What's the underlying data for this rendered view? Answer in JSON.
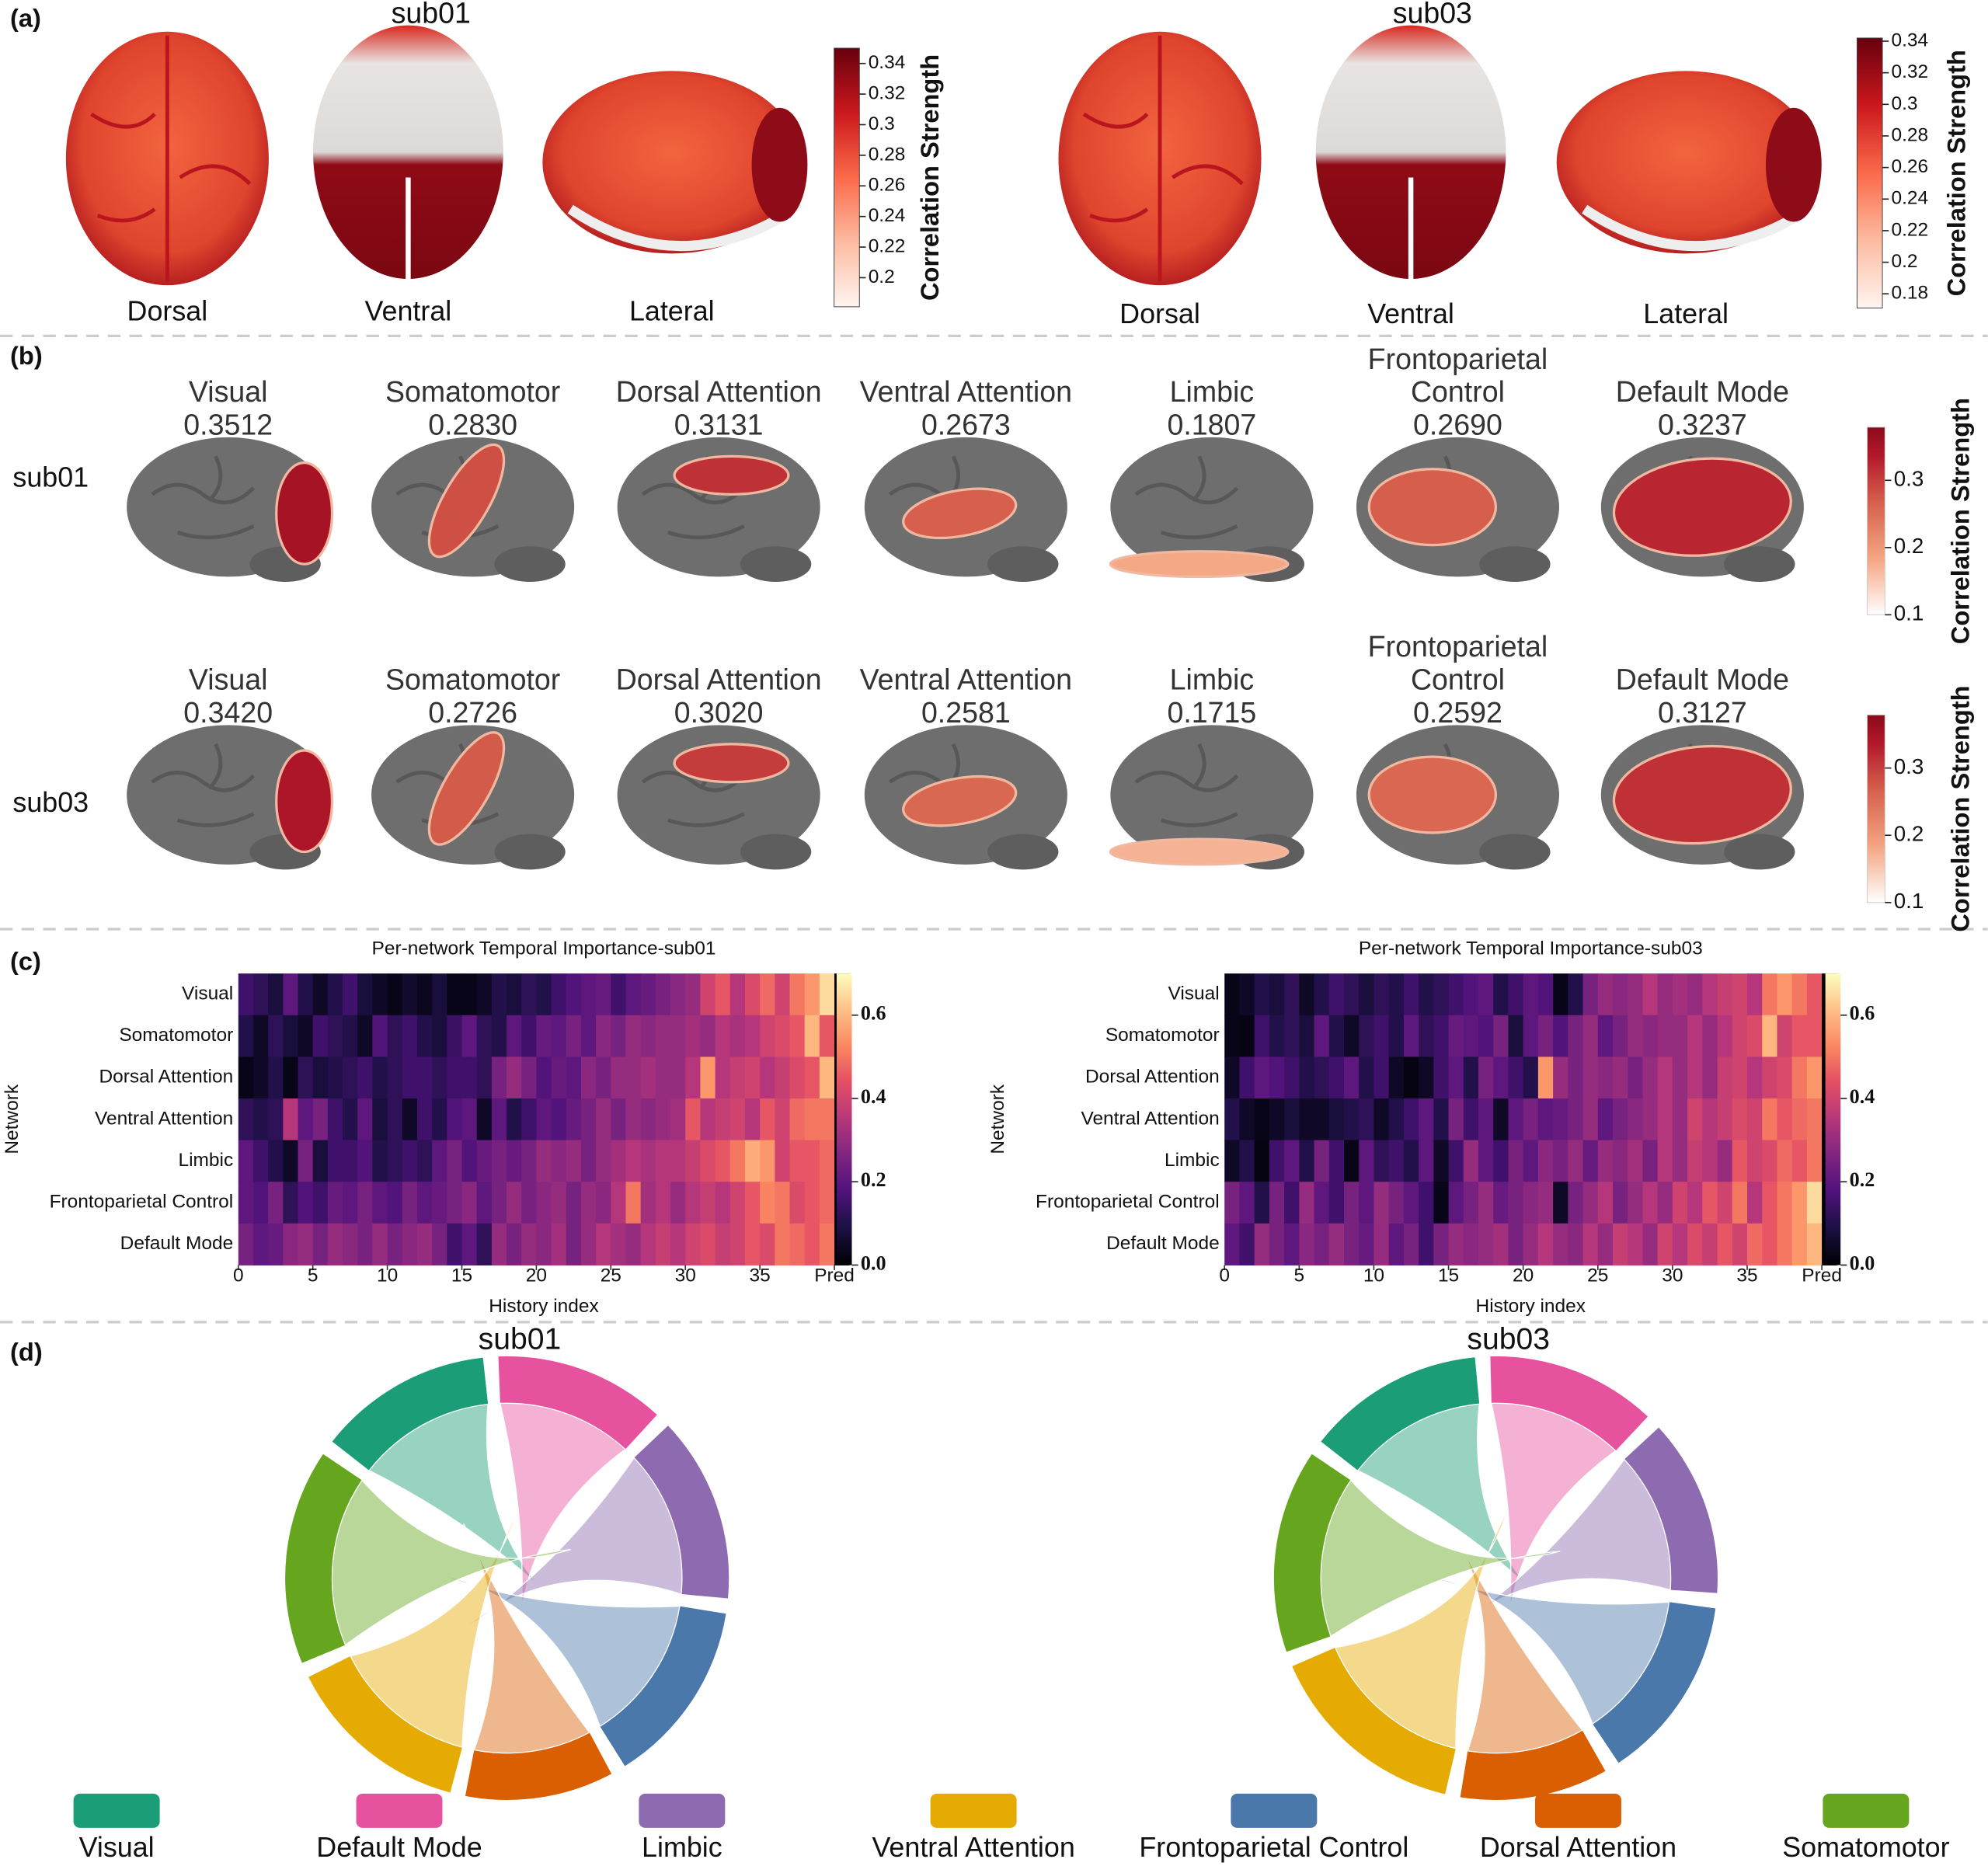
{
  "panel_labels": [
    "(a)",
    "(b)",
    "(c)",
    "(d)"
  ],
  "panel_a": [
    {
      "subject": "sub01",
      "views": [
        "Dorsal",
        "Ventral",
        "Lateral"
      ],
      "colorbar_label": "Correlation Strength",
      "clim": [
        0.181,
        0.35
      ],
      "cticks": [
        0.2,
        0.22,
        0.24,
        0.26,
        0.28,
        0.3,
        0.32,
        0.34
      ]
    },
    {
      "subject": "sub03",
      "views": [
        "Dorsal",
        "Ventral",
        "Lateral"
      ],
      "colorbar_label": "Correlation Strength",
      "clim": [
        0.171,
        0.342
      ],
      "cticks": [
        0.18,
        0.2,
        0.22,
        0.24,
        0.26,
        0.28,
        0.3,
        0.32,
        0.34
      ]
    }
  ],
  "panel_b": {
    "colorbar_label": "Correlation Strength",
    "networks": [
      "Visual",
      "Somatomotor",
      "Dorsal Attention",
      "Ventral Attention",
      "Limbic",
      "Frontoparietal Control",
      "Default Mode"
    ],
    "rows": [
      {
        "subject": "sub01",
        "scores": [
          0.3512,
          0.283,
          0.3131,
          0.2673,
          0.1807,
          0.269,
          0.3237
        ],
        "score_labels": [
          "0.3512",
          "0.2830",
          "0.3131",
          "0.2673",
          "0.1807",
          "0.2690",
          "0.3237"
        ],
        "clim": [
          0.1,
          0.379
        ],
        "cticks": [
          0.1,
          0.2,
          0.3
        ]
      },
      {
        "subject": "sub03",
        "scores": [
          0.342,
          0.2726,
          0.302,
          0.2581,
          0.1715,
          0.2592,
          0.3127
        ],
        "score_labels": [
          "0.3420",
          "0.2726",
          "0.3020",
          "0.2581",
          "0.1715",
          "0.2592",
          "0.3127"
        ],
        "clim": [
          0.1,
          0.379
        ],
        "cticks": [
          0.1,
          0.2,
          0.3
        ]
      }
    ]
  },
  "chart_data": [
    {
      "type": "heatmap",
      "title": "Per-network Temporal Importance-sub01",
      "x_label": "History index",
      "y_label": "Network",
      "categories": [
        "Visual",
        "Somatomotor",
        "Dorsal Attention",
        "Ventral Attention",
        "Limbic",
        "Frontoparietal Control",
        "Default Mode"
      ],
      "values": [
        [
          0.15,
          0.12,
          0.08,
          0.2,
          0.1,
          0.05,
          0.1,
          0.15,
          0.08,
          0.05,
          0.03,
          0.06,
          0.04,
          0.08,
          0.03,
          0.03,
          0.05,
          0.1,
          0.08,
          0.12,
          0.1,
          0.15,
          0.18,
          0.2,
          0.22,
          0.15,
          0.2,
          0.22,
          0.25,
          0.28,
          0.3,
          0.4,
          0.45,
          0.35,
          0.42,
          0.48,
          0.4,
          0.5,
          0.55,
          0.65,
          0
        ],
        [
          0.1,
          0.05,
          0.12,
          0.08,
          0.05,
          0.15,
          0.12,
          0.1,
          0.05,
          0.18,
          0.12,
          0.15,
          0.1,
          0.08,
          0.14,
          0.2,
          0.12,
          0.1,
          0.2,
          0.15,
          0.22,
          0.2,
          0.25,
          0.2,
          0.28,
          0.25,
          0.3,
          0.28,
          0.3,
          0.3,
          0.32,
          0.3,
          0.35,
          0.33,
          0.35,
          0.4,
          0.42,
          0.45,
          0.6,
          0.45,
          0
        ],
        [
          0.03,
          0.05,
          0.1,
          0.03,
          0.12,
          0.08,
          0.1,
          0.12,
          0.15,
          0.1,
          0.12,
          0.15,
          0.15,
          0.12,
          0.15,
          0.15,
          0.12,
          0.25,
          0.3,
          0.25,
          0.18,
          0.22,
          0.2,
          0.28,
          0.25,
          0.3,
          0.3,
          0.32,
          0.3,
          0.3,
          0.35,
          0.55,
          0.35,
          0.38,
          0.4,
          0.35,
          0.38,
          0.42,
          0.45,
          0.6,
          0
        ],
        [
          0.12,
          0.1,
          0.12,
          0.35,
          0.2,
          0.25,
          0.15,
          0.1,
          0.2,
          0.08,
          0.12,
          0.05,
          0.15,
          0.1,
          0.18,
          0.2,
          0.05,
          0.2,
          0.1,
          0.15,
          0.2,
          0.18,
          0.22,
          0.25,
          0.3,
          0.25,
          0.3,
          0.28,
          0.3,
          0.32,
          0.45,
          0.35,
          0.38,
          0.4,
          0.35,
          0.45,
          0.4,
          0.48,
          0.5,
          0.5,
          0
        ],
        [
          0.2,
          0.15,
          0.1,
          0.05,
          0.25,
          0.08,
          0.15,
          0.15,
          0.18,
          0.1,
          0.12,
          0.15,
          0.12,
          0.2,
          0.25,
          0.18,
          0.22,
          0.25,
          0.22,
          0.25,
          0.3,
          0.28,
          0.3,
          0.25,
          0.3,
          0.32,
          0.35,
          0.33,
          0.35,
          0.35,
          0.38,
          0.42,
          0.45,
          0.5,
          0.58,
          0.55,
          0.4,
          0.45,
          0.45,
          0.48,
          0
        ],
        [
          0.2,
          0.18,
          0.25,
          0.12,
          0.18,
          0.15,
          0.22,
          0.2,
          0.25,
          0.2,
          0.18,
          0.25,
          0.2,
          0.22,
          0.25,
          0.28,
          0.2,
          0.25,
          0.3,
          0.25,
          0.28,
          0.3,
          0.25,
          0.3,
          0.28,
          0.35,
          0.5,
          0.32,
          0.35,
          0.3,
          0.35,
          0.38,
          0.35,
          0.4,
          0.45,
          0.52,
          0.5,
          0.42,
          0.45,
          0.48,
          0
        ],
        [
          0.25,
          0.2,
          0.22,
          0.28,
          0.3,
          0.25,
          0.3,
          0.28,
          0.25,
          0.3,
          0.25,
          0.28,
          0.3,
          0.25,
          0.15,
          0.2,
          0.12,
          0.3,
          0.25,
          0.3,
          0.28,
          0.32,
          0.25,
          0.3,
          0.35,
          0.32,
          0.3,
          0.35,
          0.38,
          0.35,
          0.4,
          0.42,
          0.38,
          0.4,
          0.45,
          0.42,
          0.5,
          0.48,
          0.45,
          0.5,
          0
        ]
      ],
      "xlim": [
        0,
        41
      ],
      "xticks": [
        0,
        5,
        10,
        15,
        20,
        25,
        30,
        35,
        {
          "value": 40,
          "label": "Pred"
        }
      ],
      "clim": [
        0,
        0.7
      ],
      "cticks": [
        {
          "value": 0,
          "label": "0.0"
        },
        0.2,
        0.4,
        0.6
      ],
      "colormap": "magma"
    },
    {
      "type": "heatmap",
      "title": "Per-network Temporal Importance-sub03",
      "x_label": "History index",
      "y_label": "Network",
      "categories": [
        "Visual",
        "Somatomotor",
        "Dorsal Attention",
        "Ventral Attention",
        "Limbic",
        "Frontoparietal Control",
        "Default Mode"
      ],
      "values": [
        [
          0.03,
          0.05,
          0.1,
          0.08,
          0.12,
          0.05,
          0.1,
          0.15,
          0.12,
          0.08,
          0.12,
          0.1,
          0.15,
          0.1,
          0.12,
          0.15,
          0.18,
          0.2,
          0.1,
          0.15,
          0.2,
          0.18,
          0.03,
          0.1,
          0.25,
          0.3,
          0.28,
          0.3,
          0.35,
          0.3,
          0.32,
          0.3,
          0.35,
          0.38,
          0.4,
          0.35,
          0.5,
          0.55,
          0.5,
          0.45,
          0
        ],
        [
          0.03,
          0.02,
          0.15,
          0.1,
          0.12,
          0.08,
          0.2,
          0.1,
          0.05,
          0.12,
          0.15,
          0.1,
          0.2,
          0.12,
          0.15,
          0.22,
          0.2,
          0.18,
          0.25,
          0.08,
          0.2,
          0.25,
          0.18,
          0.25,
          0.3,
          0.2,
          0.25,
          0.3,
          0.28,
          0.3,
          0.3,
          0.35,
          0.3,
          0.35,
          0.4,
          0.42,
          0.6,
          0.4,
          0.45,
          0.45,
          0
        ],
        [
          0.05,
          0.15,
          0.2,
          0.18,
          0.15,
          0.1,
          0.12,
          0.15,
          0.2,
          0.1,
          0.15,
          0.05,
          0.02,
          0.05,
          0.15,
          0.2,
          0.1,
          0.25,
          0.2,
          0.15,
          0.1,
          0.55,
          0.3,
          0.25,
          0.3,
          0.28,
          0.3,
          0.25,
          0.3,
          0.35,
          0.3,
          0.35,
          0.3,
          0.38,
          0.4,
          0.35,
          0.4,
          0.42,
          0.5,
          0.55,
          0
        ],
        [
          0.1,
          0.05,
          0.03,
          0.05,
          0.08,
          0.05,
          0.05,
          0.08,
          0.1,
          0.12,
          0.05,
          0.1,
          0.15,
          0.2,
          0.1,
          0.25,
          0.15,
          0.2,
          0.05,
          0.2,
          0.25,
          0.2,
          0.22,
          0.25,
          0.3,
          0.2,
          0.25,
          0.28,
          0.3,
          0.35,
          0.3,
          0.4,
          0.35,
          0.38,
          0.42,
          0.4,
          0.5,
          0.45,
          0.48,
          0.5,
          0
        ],
        [
          0.05,
          0.1,
          0.02,
          0.15,
          0.2,
          0.1,
          0.25,
          0.15,
          0.03,
          0.2,
          0.12,
          0.15,
          0.1,
          0.2,
          0.05,
          0.15,
          0.3,
          0.2,
          0.15,
          0.25,
          0.2,
          0.28,
          0.25,
          0.3,
          0.22,
          0.3,
          0.28,
          0.32,
          0.25,
          0.35,
          0.3,
          0.38,
          0.35,
          0.3,
          0.45,
          0.4,
          0.42,
          0.48,
          0.45,
          0.5,
          0
        ],
        [
          0.25,
          0.2,
          0.1,
          0.25,
          0.15,
          0.3,
          0.2,
          0.15,
          0.25,
          0.2,
          0.3,
          0.25,
          0.2,
          0.15,
          0.03,
          0.2,
          0.25,
          0.3,
          0.22,
          0.25,
          0.28,
          0.3,
          0.05,
          0.25,
          0.3,
          0.35,
          0.25,
          0.3,
          0.35,
          0.3,
          0.4,
          0.35,
          0.45,
          0.4,
          0.5,
          0.35,
          0.45,
          0.5,
          0.55,
          0.65,
          0
        ],
        [
          0.2,
          0.15,
          0.3,
          0.25,
          0.2,
          0.28,
          0.25,
          0.3,
          0.25,
          0.22,
          0.3,
          0.2,
          0.25,
          0.15,
          0.25,
          0.3,
          0.28,
          0.3,
          0.32,
          0.25,
          0.3,
          0.35,
          0.3,
          0.28,
          0.35,
          0.3,
          0.38,
          0.35,
          0.3,
          0.4,
          0.35,
          0.42,
          0.38,
          0.45,
          0.4,
          0.48,
          0.45,
          0.5,
          0.55,
          0.6,
          0
        ]
      ],
      "xlim": [
        0,
        41
      ],
      "xticks": [
        0,
        5,
        10,
        15,
        20,
        25,
        30,
        35,
        {
          "value": 40,
          "label": "Pred"
        }
      ],
      "clim": [
        0,
        0.7
      ],
      "cticks": [
        {
          "value": 0,
          "label": "0.0"
        },
        0.2,
        0.4,
        0.6
      ],
      "colormap": "magma"
    },
    {
      "type": "chord",
      "title": "sub01",
      "categories": [
        "Visual",
        "Default Mode",
        "Limbic",
        "Frontoparietal Control",
        "Dorsal Attention",
        "Ventral Attention",
        "Somatomotor"
      ],
      "values": [
        47,
        46,
        50,
        50,
        40,
        50,
        58
      ]
    },
    {
      "type": "chord",
      "title": "sub03",
      "categories": [
        "Visual",
        "Default Mode",
        "Limbic",
        "Frontoparietal Control",
        "Dorsal Attention",
        "Ventral Attention",
        "Somatomotor"
      ],
      "values": [
        48,
        46,
        48,
        50,
        40,
        55,
        55
      ]
    }
  ],
  "legend": {
    "names": [
      "Visual",
      "Default Mode",
      "Limbic",
      "Ventral Attention",
      "Frontoparietal Control",
      "Dorsal Attention",
      "Somatomotor"
    ],
    "colors": [
      "#1b9e77",
      "#e7529e",
      "#8e6bb0",
      "#e6ab02",
      "#4a78ab",
      "#d95f02",
      "#66a61e"
    ]
  }
}
